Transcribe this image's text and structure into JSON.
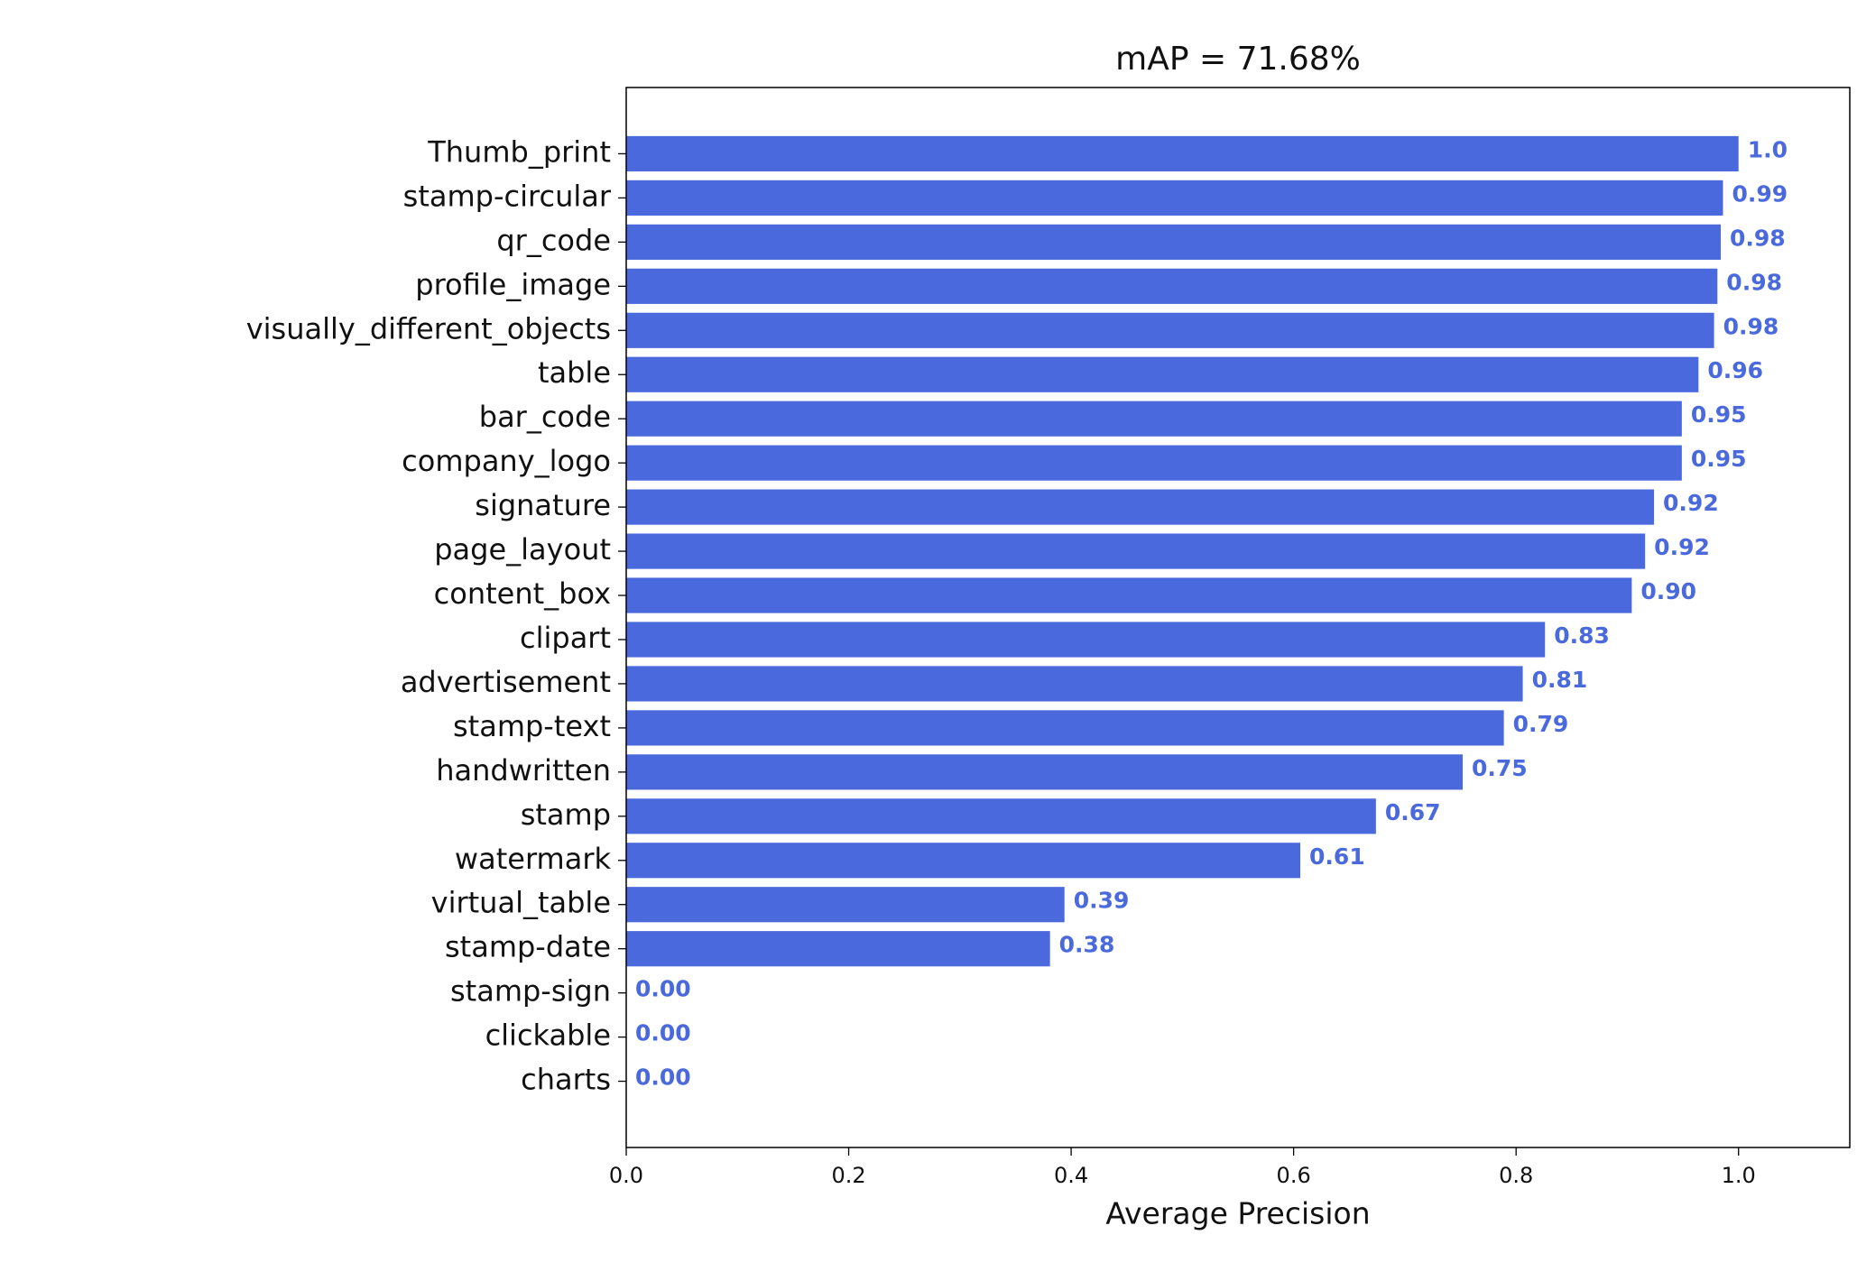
{
  "chart_data": {
    "type": "barh",
    "title": "mAP = 71.68%",
    "xlabel": "Average Precision",
    "categories": [
      "Thumb_print",
      "stamp-circular",
      "qr_code",
      "profile_image",
      "visually_different_objects",
      "table",
      "bar_code",
      "company_logo",
      "signature",
      "page_layout",
      "content_box",
      "clipart",
      "advertisement",
      "stamp-text",
      "handwritten",
      "stamp",
      "watermark",
      "virtual_table",
      "stamp-date",
      "stamp-sign",
      "clickable",
      "charts"
    ],
    "values": [
      1.0,
      0.986,
      0.984,
      0.981,
      0.978,
      0.964,
      0.949,
      0.949,
      0.924,
      0.916,
      0.904,
      0.826,
      0.806,
      0.789,
      0.752,
      0.674,
      0.606,
      0.394,
      0.381,
      0,
      0,
      0
    ],
    "value_labels": [
      "1.0",
      "0.99",
      "0.98",
      "0.98",
      "0.98",
      "0.96",
      "0.95",
      "0.95",
      "0.92",
      "0.92",
      "0.90",
      "0.83",
      "0.81",
      "0.79",
      "0.75",
      "0.67",
      "0.61",
      "0.39",
      "0.38",
      "0.00",
      "0.00",
      "0.00"
    ],
    "color": "#4a69dd",
    "xlim": [
      0,
      1.1
    ],
    "xticks": [
      {
        "value": 0,
        "label": "0.0"
      },
      0.2,
      0.4,
      0.6,
      0.8,
      {
        "value": 1,
        "label": "1.0"
      }
    ]
  }
}
